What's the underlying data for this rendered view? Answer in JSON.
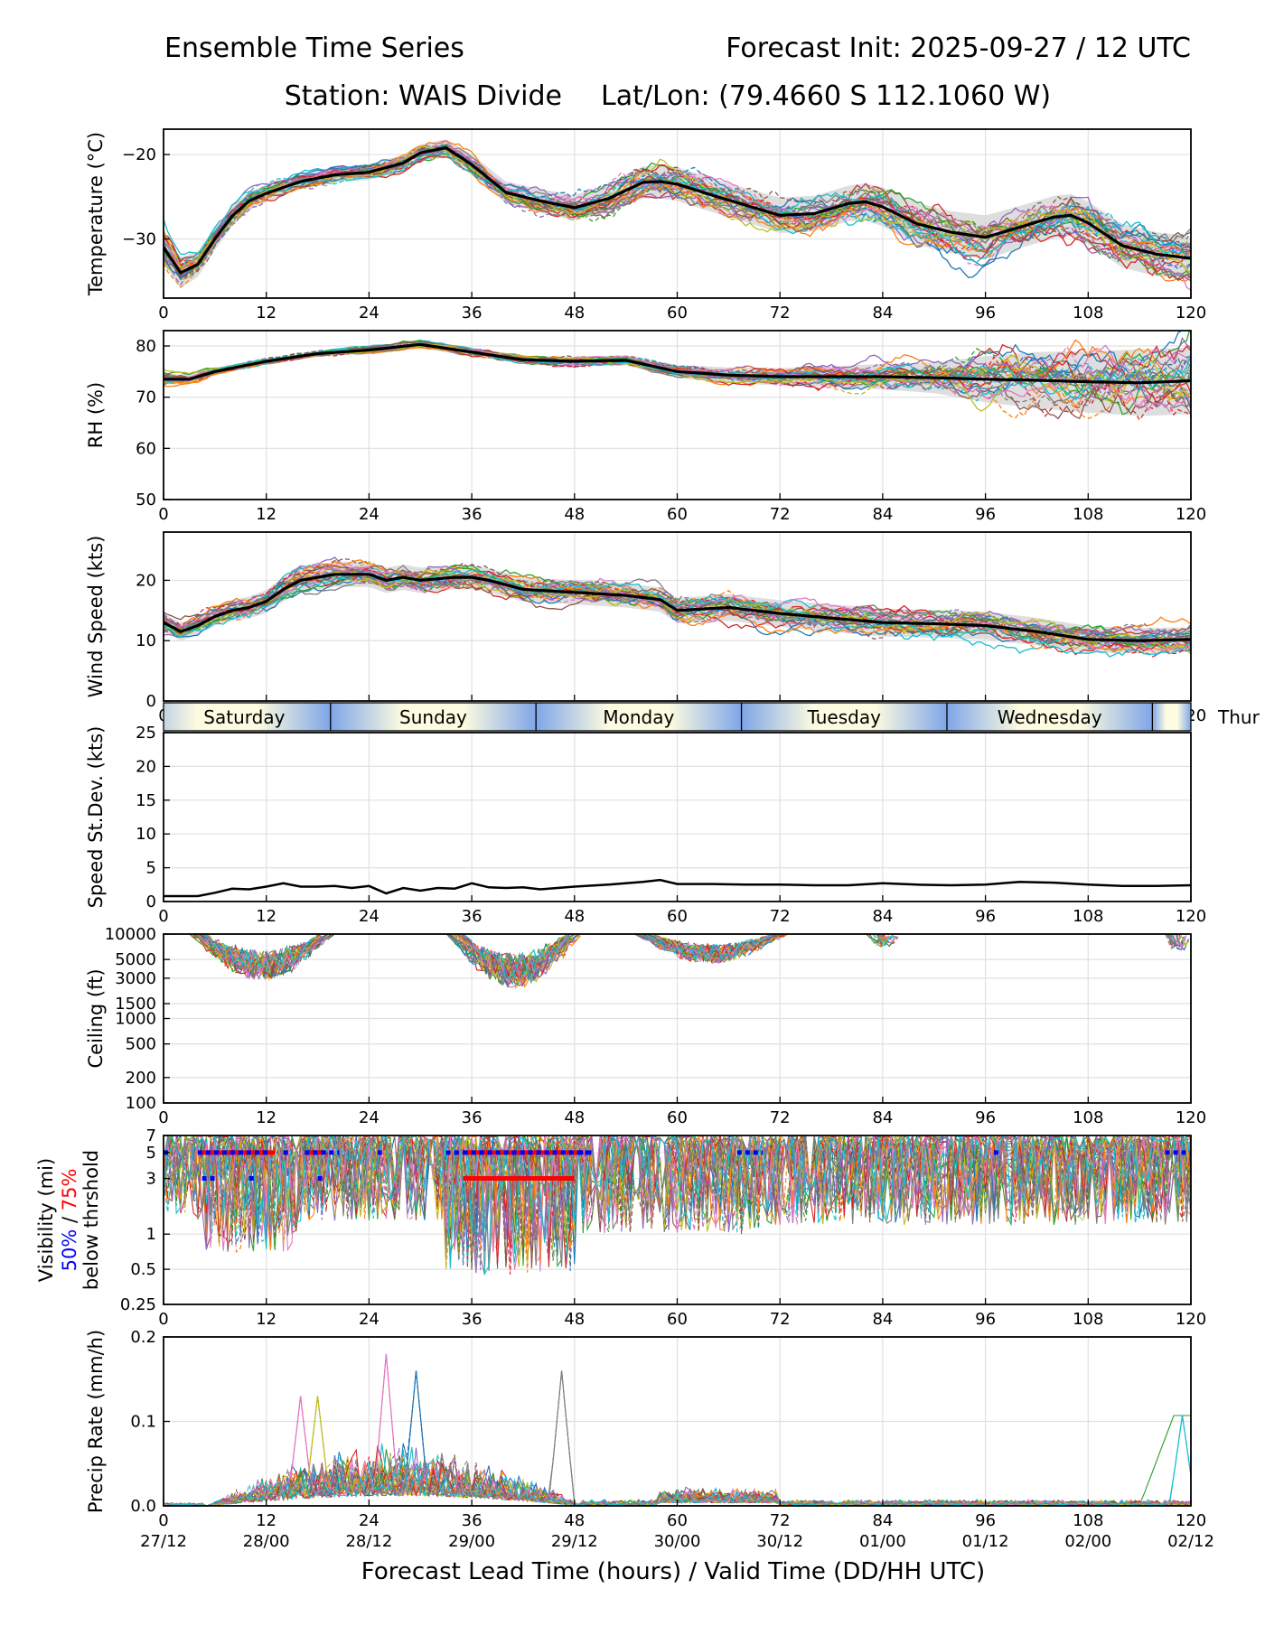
{
  "header": {
    "title_left": "Ensemble Time Series",
    "title_right": "Forecast Init: 2025-09-27 / 12 UTC",
    "station": "Station: WAIS Divide",
    "latlon": "Lat/Lon: (79.4660 S 112.1060 W)"
  },
  "x_axis": {
    "ticks": [
      0,
      12,
      24,
      36,
      48,
      60,
      72,
      84,
      96,
      108,
      120
    ],
    "tick_labels": [
      "0",
      "12",
      "24",
      "36",
      "48",
      "60",
      "72",
      "84",
      "96",
      "108",
      "120"
    ],
    "valid_time_labels": [
      "27/12",
      "28/00",
      "28/12",
      "29/00",
      "29/12",
      "30/00",
      "30/12",
      "01/00",
      "01/12",
      "02/00",
      "02/12"
    ],
    "label": "Forecast Lead Time (hours) / Valid Time (DD/HH UTC)",
    "xlim": [
      0,
      120
    ]
  },
  "day_bar": {
    "days": [
      "Saturday",
      "Sunday",
      "Monday",
      "Tuesday",
      "Wednesday",
      "Thur"
    ],
    "day_start_hours": [
      -4.5,
      19.5,
      43.5,
      67.5,
      91.5,
      115.5
    ]
  },
  "colors": {
    "ensemble": [
      "#1f77b4",
      "#ff7f0e",
      "#2ca02c",
      "#d62728",
      "#9467bd",
      "#8c564b",
      "#e377c2",
      "#7f7f7f",
      "#bcbd22",
      "#17becf"
    ],
    "mean": "#000000",
    "spread": "#d3d3d3",
    "grid": "#e0e0e0",
    "p50": "#0000ff",
    "p75": "#ff0000",
    "day_night": "#7fa6e8",
    "day_light": "#fdfbe0"
  },
  "chart_data": [
    {
      "type": "line",
      "name": "temperature",
      "ylabel": "Temperature (°C)",
      "ylim": [
        -37,
        -17
      ],
      "yticks": [
        -20,
        -30
      ],
      "ytick_labels": [
        "−20",
        "−30"
      ],
      "ensemble_members": 30,
      "mean": {
        "x": [
          0,
          2,
          4,
          6,
          8,
          10,
          12,
          16,
          20,
          24,
          28,
          30,
          33,
          36,
          40,
          44,
          48,
          52,
          56,
          58,
          60,
          64,
          68,
          72,
          76,
          80,
          82,
          84,
          88,
          92,
          96,
          100,
          104,
          106,
          108,
          112,
          116,
          120
        ],
        "y": [
          -31,
          -34,
          -33,
          -30,
          -27.3,
          -25.5,
          -24.6,
          -23.2,
          -22.4,
          -22.1,
          -21,
          -19.8,
          -19.2,
          -21.2,
          -24.5,
          -25.5,
          -26.3,
          -25.2,
          -23.3,
          -23.2,
          -23.5,
          -24.8,
          -26,
          -27.2,
          -27,
          -25.8,
          -25.6,
          -26.2,
          -28.2,
          -29.2,
          -29.8,
          -28.6,
          -27.4,
          -27.2,
          -28.1,
          -30.8,
          -31.8,
          -32.3
        ]
      },
      "spread": [
        2,
        1.8,
        1.5,
        1.3,
        1.2,
        1.1,
        1,
        0.9,
        0.9,
        0.9,
        1,
        1,
        1,
        1.2,
        1.3,
        1.4,
        1.5,
        1.7,
        1.9,
        2,
        2,
        2,
        2,
        2.1,
        2.1,
        2.1,
        2.2,
        2.3,
        2.5,
        2.5,
        2.6,
        2.5,
        2.5,
        2.5,
        2.5,
        2.6,
        2.6,
        2.6
      ]
    },
    {
      "type": "line",
      "name": "relative_humidity",
      "ylabel": "RH (%)",
      "ylim": [
        50,
        83
      ],
      "yticks": [
        50,
        60,
        70,
        80
      ],
      "ytick_labels": [
        "50",
        "60",
        "70",
        "80"
      ],
      "ensemble_members": 30,
      "mean": {
        "x": [
          0,
          3,
          6,
          12,
          18,
          24,
          30,
          36,
          42,
          48,
          54,
          60,
          66,
          72,
          78,
          84,
          90,
          96,
          102,
          108,
          114,
          120
        ],
        "y": [
          73.5,
          73.5,
          75,
          77,
          78.5,
          79.2,
          80.3,
          78.8,
          77.3,
          77,
          77.2,
          75,
          74.3,
          74,
          74,
          74,
          73.8,
          73.5,
          73.3,
          73,
          72.8,
          73.2
        ]
      },
      "spread": [
        1,
        1,
        0.7,
        0.6,
        0.6,
        0.6,
        0.7,
        0.8,
        0.8,
        0.9,
        1,
        1.3,
        1.5,
        1.7,
        2,
        2.5,
        3,
        4.5,
        5.5,
        6,
        6.5,
        6.5
      ]
    },
    {
      "type": "line",
      "name": "wind_speed",
      "ylabel": "Wind Speed (kts)",
      "ylim": [
        0,
        28
      ],
      "yticks": [
        0,
        10,
        20
      ],
      "ytick_labels": [
        "0",
        "10",
        "20"
      ],
      "ensemble_members": 30,
      "mean": {
        "x": [
          0,
          2,
          4,
          6,
          8,
          10,
          12,
          14,
          16,
          18,
          20,
          24,
          26,
          28,
          30,
          34,
          36,
          38,
          42,
          48,
          54,
          58,
          60,
          66,
          72,
          80,
          84,
          90,
          96,
          102,
          108,
          114,
          120
        ],
        "y": [
          13,
          11.5,
          12.5,
          14,
          15,
          15.5,
          16.5,
          18.5,
          20,
          20.5,
          21,
          21,
          20,
          20.5,
          20,
          20.5,
          20.5,
          20,
          18.5,
          18,
          17.5,
          16.8,
          15,
          15.5,
          14.5,
          13.5,
          13,
          12.8,
          12.5,
          11.5,
          10.2,
          10,
          10.2
        ]
      },
      "spread": [
        1.5,
        1.5,
        1.5,
        1.5,
        1.7,
        1.8,
        1.9,
        2,
        2,
        2.1,
        2.1,
        2.1,
        2.1,
        2.1,
        2.1,
        2,
        2,
        2,
        2,
        2,
        2,
        2,
        2.1,
        2.2,
        2.2,
        2.3,
        2.3,
        2.3,
        2.3,
        2.3,
        2.2,
        2.1,
        2
      ]
    },
    {
      "type": "line",
      "name": "speed_stdev",
      "ylabel": "Speed St.Dev. (kts)",
      "ylim": [
        0,
        25
      ],
      "yticks": [
        0,
        5,
        10,
        15,
        20,
        25
      ],
      "ytick_labels": [
        "0",
        "5",
        "10",
        "15",
        "20",
        "25"
      ],
      "series": [
        {
          "name": "std dev",
          "x": [
            0,
            4,
            6,
            8,
            10,
            12,
            14,
            16,
            18,
            20,
            22,
            24,
            26,
            28,
            30,
            32,
            34,
            36,
            38,
            40,
            42,
            44,
            46,
            48,
            52,
            56,
            58,
            60,
            64,
            68,
            72,
            76,
            80,
            84,
            88,
            92,
            96,
            100,
            104,
            108,
            112,
            116,
            120
          ],
          "y": [
            0.8,
            0.8,
            1.3,
            1.9,
            1.8,
            2.2,
            2.7,
            2.2,
            2.2,
            2.3,
            2.0,
            2.3,
            1.2,
            2.0,
            1.6,
            2.0,
            1.9,
            2.7,
            2.1,
            2.0,
            2.1,
            1.8,
            2.0,
            2.2,
            2.5,
            2.9,
            3.2,
            2.6,
            2.6,
            2.5,
            2.5,
            2.4,
            2.4,
            2.7,
            2.5,
            2.4,
            2.5,
            2.9,
            2.8,
            2.5,
            2.3,
            2.3,
            2.4
          ]
        }
      ]
    },
    {
      "type": "line",
      "name": "ceiling",
      "ylabel": "Ceiling (ft)",
      "yscale": "log",
      "ylim": [
        100,
        10000
      ],
      "yticks": [
        100,
        200,
        500,
        1000,
        1500,
        3000,
        5000,
        10000
      ],
      "ytick_labels": [
        "100",
        "200",
        "500",
        "1000",
        "1500",
        "3000",
        "5000",
        "10000"
      ],
      "ensemble_members": 30,
      "cloud_episodes": [
        {
          "x": [
            3,
            20
          ],
          "min": 2800
        },
        {
          "x": [
            33,
            49
          ],
          "min": 2300
        },
        {
          "x": [
            55,
            73
          ],
          "min": 4500
        },
        {
          "x": [
            82,
            86
          ],
          "min": 7000
        },
        {
          "x": [
            117,
            120
          ],
          "min": 6000
        }
      ]
    },
    {
      "type": "line",
      "name": "visibility",
      "ylabel_lines": [
        "Visibility (mi)",
        "50%",
        "/",
        "75%",
        "below thrshold"
      ],
      "yscale": "log",
      "ylim": [
        0.25,
        7
      ],
      "yticks": [
        0.25,
        0.5,
        1,
        3,
        5,
        7
      ],
      "ytick_labels": [
        "0.25",
        "0.5",
        "1",
        "3",
        "5",
        "7"
      ],
      "ensemble_members": 30,
      "threshold_markers": {
        "blue_50": [
          {
            "x": [
              0,
              0.6
            ],
            "y": 5
          },
          {
            "x": [
              4,
              12.5
            ],
            "y": 5
          },
          {
            "x": [
              4.5,
              6
            ],
            "y": 3
          },
          {
            "x": [
              10,
              11
            ],
            "y": 3
          },
          {
            "x": [
              14,
              15
            ],
            "y": 5
          },
          {
            "x": [
              16.5,
              20.5
            ],
            "y": 5
          },
          {
            "x": [
              18,
              18.8
            ],
            "y": 3
          },
          {
            "x": [
              25,
              25.5
            ],
            "y": 5
          },
          {
            "x": [
              33,
              35
            ],
            "y": 5
          },
          {
            "x": [
              35,
              49.5
            ],
            "y": 5
          },
          {
            "x": [
              48.5,
              50
            ],
            "y": 5
          },
          {
            "x": [
              67,
              70
            ],
            "y": 5
          },
          {
            "x": [
              97,
              97.5
            ],
            "y": 5
          },
          {
            "x": [
              117,
              120
            ],
            "y": 5
          }
        ],
        "red_75": [
          {
            "x": [
              4,
              13
            ],
            "y": 5
          },
          {
            "x": [
              17,
              19
            ],
            "y": 5
          },
          {
            "x": [
              35,
              49
            ],
            "y": 5
          },
          {
            "x": [
              35,
              48
            ],
            "y": 3
          }
        ]
      }
    },
    {
      "type": "line",
      "name": "precip_rate",
      "ylabel": "Precip Rate (mm/h)",
      "ylim": [
        0,
        0.2
      ],
      "yticks": [
        0,
        0.1,
        0.2
      ],
      "ytick_labels": [
        "0.0",
        "0.1",
        "0.2"
      ],
      "ensemble_members": 30,
      "notable_peaks": [
        {
          "x": 26,
          "y": 0.18
        },
        {
          "x": 29.5,
          "y": 0.16
        },
        {
          "x": 46.5,
          "y": 0.16
        },
        {
          "x": 18,
          "y": 0.13
        },
        {
          "x": 16,
          "y": 0.13
        },
        {
          "x": 119,
          "y": 0.107
        }
      ]
    }
  ]
}
